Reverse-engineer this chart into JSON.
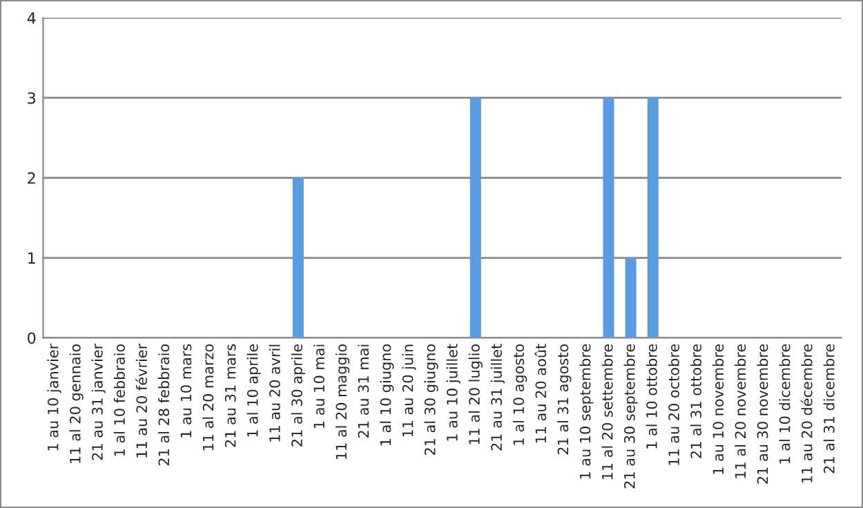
{
  "chart_data": {
    "type": "bar",
    "categories": [
      "1 au 10 janvier",
      "11 al 20 gennaio",
      "21 au 31 janvier",
      "1 al 10 febbraio",
      "11 au 20 février",
      "21 al 28 febbraio",
      "1 au 10 mars",
      "11 al 20 marzo",
      "21 au 31 mars",
      "1 al 10 aprile",
      "11 au 20 avril",
      "21 al 30 aprile",
      "1 au 10 mai",
      "11 al 20 maggio",
      "21 au 31 mai",
      "1 al 10 giugno",
      "11 au 20 juin",
      "21 al 30 giugno",
      "1 au 10 juillet",
      "11 al 20 luglio",
      "21 au 31 juillet",
      "1 al 10 agosto",
      "11 au 20 août",
      "21 al 31 agosto",
      "1 au 10 septembre",
      "11 al 20 settembre",
      "21 au 30 septembre",
      "1 al 10 ottobre",
      "11 au 20 octobre",
      "21 al 31 ottobre",
      "1 au 10 novembre",
      "11 al 20 novembre",
      "21 au 30 novembre",
      "1 al 10 dicembre",
      "11 au 20 décembre",
      "21 al 31 dicembre"
    ],
    "values": [
      0,
      0,
      0,
      0,
      0,
      0,
      0,
      0,
      0,
      0,
      0,
      2,
      0,
      0,
      0,
      0,
      0,
      0,
      0,
      3,
      0,
      0,
      0,
      0,
      0,
      3,
      1,
      3,
      0,
      0,
      0,
      0,
      0,
      0,
      0,
      0
    ],
    "color": "#5b9be0",
    "ylim": [
      0,
      4
    ],
    "yticks": [
      0,
      1,
      2,
      3,
      4
    ],
    "grid": "y",
    "legend": false
  }
}
